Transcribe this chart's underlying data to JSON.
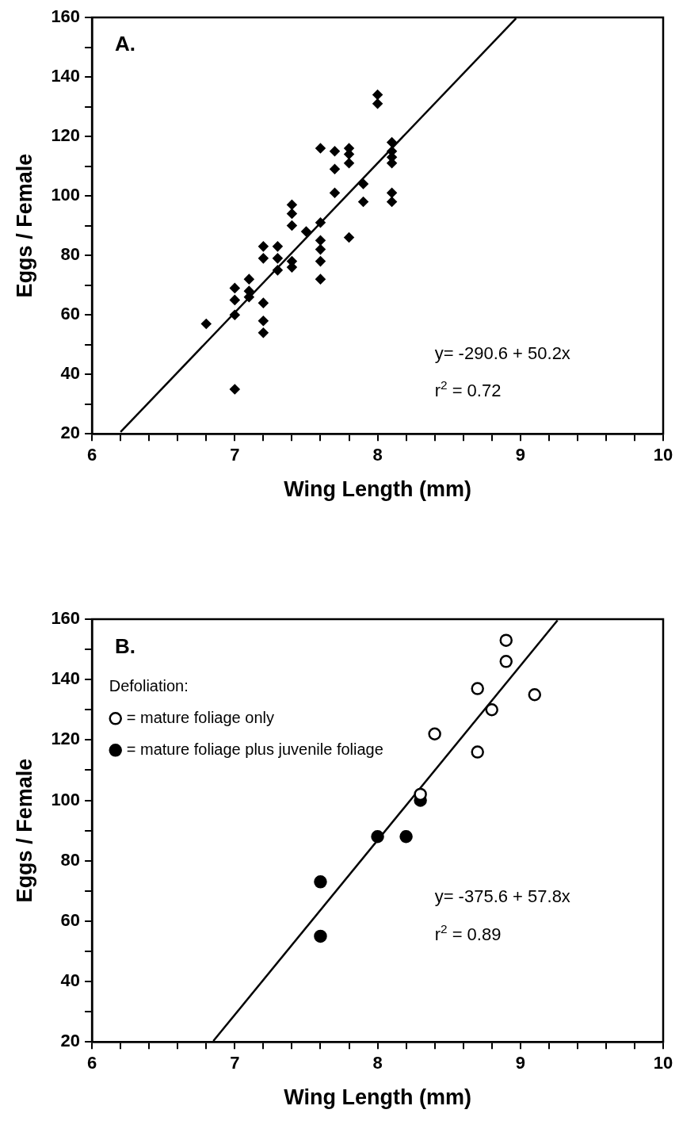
{
  "chart_data": [
    {
      "type": "scatter",
      "xlabel": "Wing Length (mm)",
      "ylabel": "Eggs / Female",
      "xlim": [
        6,
        10
      ],
      "ylim": [
        20,
        160
      ],
      "xticks": [
        6,
        {
          "value": 6.2,
          "label": null
        },
        {
          "value": 6.4,
          "label": null
        },
        {
          "value": 6.6,
          "label": null
        },
        {
          "value": 6.8,
          "label": null
        },
        7,
        {
          "value": 7.2,
          "label": null
        },
        {
          "value": 7.4,
          "label": null
        },
        {
          "value": 7.6,
          "label": null
        },
        {
          "value": 7.8,
          "label": null
        },
        8,
        {
          "value": 8.2,
          "label": null
        },
        {
          "value": 8.4,
          "label": null
        },
        {
          "value": 8.6,
          "label": null
        },
        {
          "value": 8.8,
          "label": null
        },
        9,
        {
          "value": 9.2,
          "label": null
        },
        {
          "value": 9.4,
          "label": null
        },
        {
          "value": 9.6,
          "label": null
        },
        {
          "value": 9.8,
          "label": null
        },
        10
      ],
      "yticks": [
        20,
        {
          "value": 30,
          "label": null
        },
        40,
        {
          "value": 50,
          "label": null
        },
        60,
        {
          "value": 70,
          "label": null
        },
        80,
        {
          "value": 90,
          "label": null
        },
        100,
        {
          "value": 110,
          "label": null
        },
        120,
        {
          "value": 130,
          "label": null
        },
        140,
        {
          "value": 150,
          "label": null
        },
        160
      ],
      "grid": false,
      "legend": false,
      "annotations": [
        "A.",
        "y= -290.6 + 50.2x",
        "r$^{2}$ = 0.72"
      ],
      "series": [
        {
          "color": "#000000",
          "marker": "diamond",
          "x": [
            6.8,
            7.0,
            7.0,
            7.0,
            7.0,
            7.1,
            7.1,
            7.1,
            7.2,
            7.2,
            7.2,
            7.2,
            7.2,
            7.3,
            7.3,
            7.3,
            7.4,
            7.4,
            7.4,
            7.4,
            7.4,
            7.5,
            7.6,
            7.6,
            7.6,
            7.6,
            7.6,
            7.6,
            7.7,
            7.7,
            7.7,
            7.8,
            7.8,
            7.8,
            7.8,
            7.9,
            7.9,
            8.0,
            8.0,
            8.1,
            8.1,
            8.1,
            8.1,
            8.1,
            8.1
          ],
          "values": [
            57,
            60,
            65,
            69,
            35,
            72,
            68,
            66,
            83,
            79,
            64,
            58,
            54,
            83,
            79,
            75,
            97,
            94,
            90,
            78,
            76,
            88,
            91,
            85,
            82,
            78,
            72,
            116,
            115,
            109,
            101,
            116,
            114,
            111,
            86,
            104,
            98,
            134,
            131,
            118,
            115,
            113,
            111,
            101,
            98
          ]
        },
        {
          "type": "line",
          "color": "#000000",
          "marker": "none",
          "x": [
            6.2,
            8.97
          ],
          "values": [
            20.6,
            159.7
          ]
        }
      ]
    },
    {
      "type": "scatter",
      "xlabel": "Wing Length (mm)",
      "ylabel": "Eggs / Female",
      "xlim": [
        6,
        10
      ],
      "ylim": [
        20,
        160
      ],
      "xticks": [
        6,
        {
          "value": 6.2,
          "label": null
        },
        {
          "value": 6.4,
          "label": null
        },
        {
          "value": 6.6,
          "label": null
        },
        {
          "value": 6.8,
          "label": null
        },
        7,
        {
          "value": 7.2,
          "label": null
        },
        {
          "value": 7.4,
          "label": null
        },
        {
          "value": 7.6,
          "label": null
        },
        {
          "value": 7.8,
          "label": null
        },
        8,
        {
          "value": 8.2,
          "label": null
        },
        {
          "value": 8.4,
          "label": null
        },
        {
          "value": 8.6,
          "label": null
        },
        {
          "value": 8.8,
          "label": null
        },
        9,
        {
          "value": 9.2,
          "label": null
        },
        {
          "value": 9.4,
          "label": null
        },
        {
          "value": 9.6,
          "label": null
        },
        {
          "value": 9.8,
          "label": null
        },
        10
      ],
      "yticks": [
        20,
        {
          "value": 30,
          "label": null
        },
        40,
        {
          "value": 50,
          "label": null
        },
        60,
        {
          "value": 70,
          "label": null
        },
        80,
        {
          "value": 90,
          "label": null
        },
        100,
        {
          "value": 110,
          "label": null
        },
        120,
        {
          "value": 130,
          "label": null
        },
        140,
        {
          "value": 150,
          "label": null
        },
        160
      ],
      "grid": false,
      "legend": "top left",
      "legend_title": "Defoliation:",
      "annotations": [
        "B.",
        "y= -375.6 + 57.8x",
        "r$^{2}$ = 0.89"
      ],
      "series": [
        {
          "name": "= mature foliage only",
          "color": "#ffffff",
          "marker": "circle",
          "x": [
            8.9,
            8.9,
            8.7,
            9.1,
            8.8,
            8.4,
            8.7,
            8.3
          ],
          "values": [
            153,
            146,
            137,
            135,
            130,
            122,
            116,
            102
          ]
        },
        {
          "name": "= mature foliage plus juvenile foliage",
          "color": "#000000",
          "marker": "circle",
          "x": [
            8.3,
            8.0,
            8.2,
            7.6,
            7.6
          ],
          "values": [
            100,
            88,
            88,
            73,
            55
          ]
        },
        {
          "type": "line",
          "color": "#000000",
          "marker": "none",
          "x": [
            6.85,
            9.26
          ],
          "values": [
            20.3,
            159.6
          ]
        }
      ]
    }
  ]
}
